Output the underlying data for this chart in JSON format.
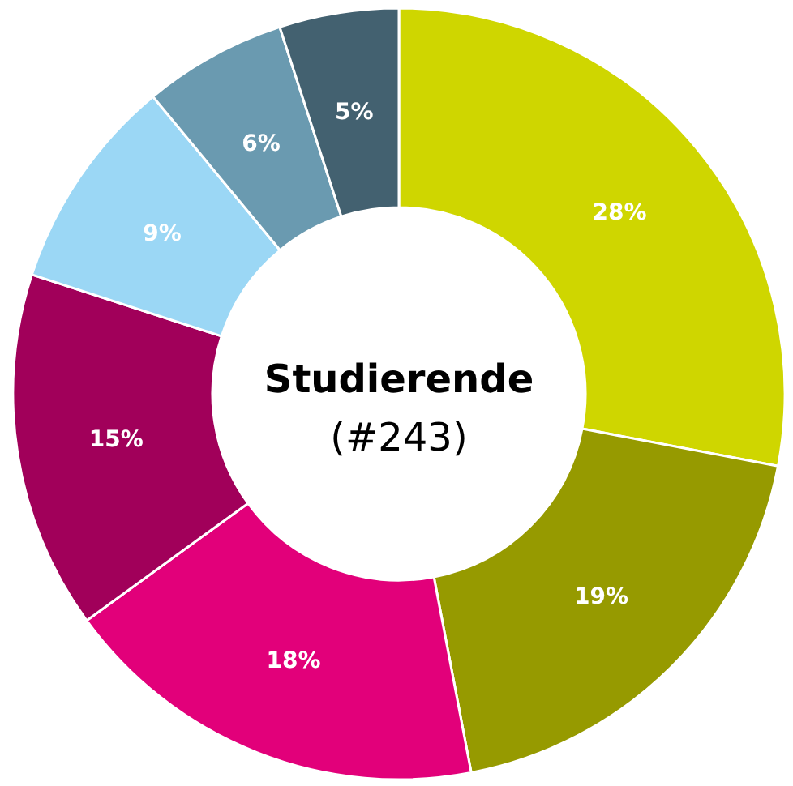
{
  "chart_data": {
    "type": "donut",
    "title": "Studierende",
    "subtitle": "(#243)",
    "categories": [
      null,
      null,
      null,
      null,
      null,
      null,
      null
    ],
    "values": [
      28,
      19,
      18,
      15,
      9,
      6,
      5
    ],
    "colors": [
      "#cfd600",
      "#969a00",
      "#e2007a",
      "#a1005a",
      "#9bd7f5",
      "#6a9ab0",
      "#436170"
    ],
    "value_labels": [
      "28%",
      "19%",
      "18%",
      "15%",
      "9%",
      "6%",
      "5%"
    ]
  }
}
